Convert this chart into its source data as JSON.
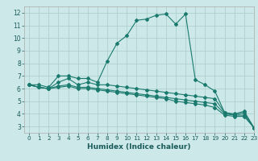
{
  "xlabel": "Humidex (Indice chaleur)",
  "ylabel": "",
  "bg_color": "#cce8e8",
  "grid_color": "#aacccc",
  "line_color": "#1a7a6e",
  "xlim": [
    -0.5,
    23
  ],
  "ylim": [
    2.5,
    12.5
  ],
  "xticks": [
    0,
    1,
    2,
    3,
    4,
    5,
    6,
    7,
    8,
    9,
    10,
    11,
    12,
    13,
    14,
    15,
    16,
    17,
    18,
    19,
    20,
    21,
    22,
    23
  ],
  "yticks": [
    3,
    4,
    5,
    6,
    7,
    8,
    9,
    10,
    11,
    12
  ],
  "lines": [
    {
      "x": [
        0,
        1,
        2,
        3,
        4,
        5,
        6,
        7,
        8,
        9,
        10,
        11,
        12,
        13,
        14,
        15,
        16,
        17,
        18,
        19,
        20,
        21,
        22,
        23
      ],
      "y": [
        6.3,
        6.3,
        6.1,
        7.0,
        7.0,
        6.8,
        6.8,
        6.5,
        8.2,
        9.6,
        10.2,
        11.4,
        11.5,
        11.8,
        11.9,
        11.1,
        11.9,
        6.7,
        6.3,
        5.8,
        4.1,
        4.0,
        4.2,
        2.9
      ]
    },
    {
      "x": [
        0,
        1,
        2,
        3,
        4,
        5,
        6,
        7,
        8,
        9,
        10,
        11,
        12,
        13,
        14,
        15,
        16,
        17,
        18,
        19,
        20,
        21,
        22,
        23
      ],
      "y": [
        6.3,
        6.1,
        6.0,
        6.5,
        6.8,
        6.3,
        6.5,
        6.3,
        6.3,
        6.2,
        6.1,
        6.0,
        5.9,
        5.8,
        5.7,
        5.6,
        5.5,
        5.4,
        5.3,
        5.2,
        4.1,
        3.9,
        4.1,
        2.9
      ]
    },
    {
      "x": [
        0,
        1,
        2,
        3,
        4,
        5,
        6,
        7,
        8,
        9,
        10,
        11,
        12,
        13,
        14,
        15,
        16,
        17,
        18,
        19,
        20,
        21,
        22,
        23
      ],
      "y": [
        6.3,
        6.1,
        6.0,
        6.2,
        6.3,
        6.1,
        6.1,
        6.0,
        5.9,
        5.8,
        5.7,
        5.6,
        5.5,
        5.4,
        5.3,
        5.2,
        5.1,
        5.0,
        4.9,
        4.8,
        4.0,
        3.9,
        3.9,
        2.9
      ]
    },
    {
      "x": [
        0,
        1,
        2,
        3,
        4,
        5,
        6,
        7,
        8,
        9,
        10,
        11,
        12,
        13,
        14,
        15,
        16,
        17,
        18,
        19,
        20,
        21,
        22,
        23
      ],
      "y": [
        6.3,
        6.1,
        6.0,
        6.1,
        6.2,
        6.0,
        6.0,
        5.9,
        5.8,
        5.7,
        5.6,
        5.5,
        5.4,
        5.3,
        5.2,
        5.0,
        4.9,
        4.8,
        4.7,
        4.5,
        3.9,
        3.8,
        3.8,
        2.9
      ]
    }
  ]
}
